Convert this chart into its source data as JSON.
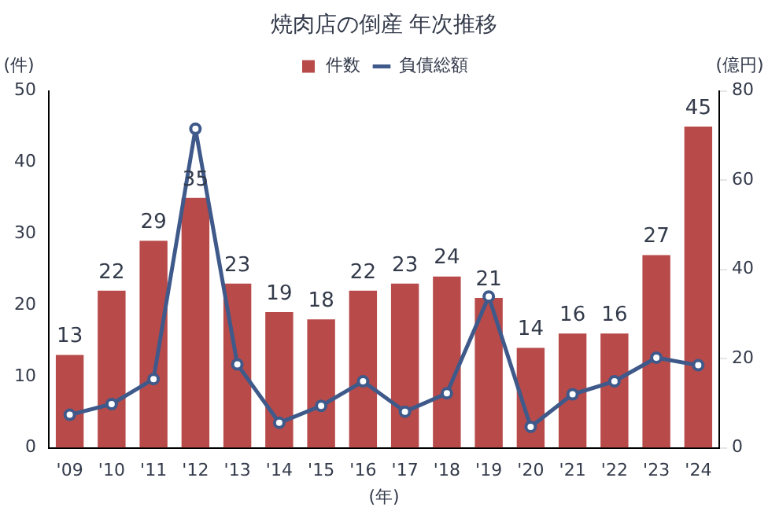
{
  "chart_data": {
    "type": "bar",
    "title": "焼肉店の倒産 年次推移",
    "xlabel": "(年)",
    "ylabel": "(件)",
    "y2label": "(億円)",
    "categories": [
      "'09",
      "'10",
      "'11",
      "'12",
      "'13",
      "'14",
      "'15",
      "'16",
      "'17",
      "'18",
      "'19",
      "'20",
      "'21",
      "'22",
      "'23",
      "'24"
    ],
    "series": [
      {
        "name": "件数",
        "color": "#b84a4a",
        "values": [
          13,
          22,
          29,
          35,
          23,
          19,
          18,
          22,
          23,
          24,
          21,
          14,
          16,
          16,
          27,
          45
        ],
        "value_labels": [
          "13",
          "22",
          "29",
          "35",
          "23",
          "19",
          "18",
          "22",
          "23",
          "24",
          "21",
          "14",
          "16",
          "16",
          "27",
          "45"
        ]
      },
      {
        "name": "負債総額",
        "type": "line",
        "axis": "y2",
        "color": "#3f5a8a",
        "marker": "circle",
        "values": [
          7.4,
          9.8,
          15.4,
          71.5,
          18.7,
          5.6,
          9.4,
          14.9,
          8.1,
          12.2,
          33.9,
          4.7,
          12,
          14.9,
          20.2,
          18.5
        ]
      }
    ],
    "ylim": [
      0,
      50
    ],
    "yticks": [
      0,
      10,
      20,
      30,
      40,
      50
    ],
    "y2lim": [
      0,
      80
    ],
    "y2ticks": [
      0,
      20,
      40,
      60,
      80
    ],
    "grid": false,
    "legend": "top"
  }
}
